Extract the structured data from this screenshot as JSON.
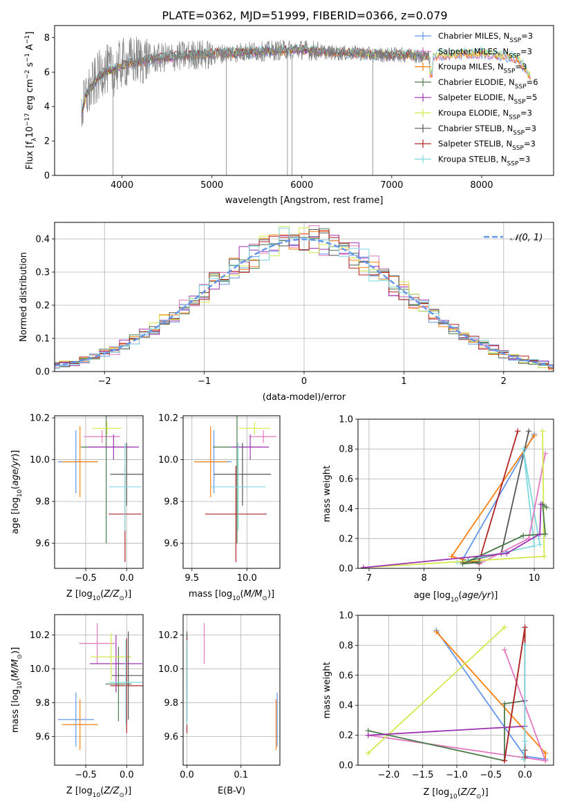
{
  "figure": {
    "title": "PLATE=0362, MJD=51999, FIBERID=0366, z=0.079"
  },
  "series": [
    {
      "key": "chab_miles",
      "name": "Chabrier MILES, N$_{SSP}$=3",
      "label_main": "Chabrier MILES, N",
      "label_sub": "SSP",
      "label_tail": "=3",
      "color": "#6495ed"
    },
    {
      "key": "salp_miles",
      "name": "Salpeter MILES, N$_{SSP}$=3",
      "label_main": "Salpeter MILES, N",
      "label_sub": "SSP",
      "label_tail": "=3",
      "color": "#e377c2"
    },
    {
      "key": "krou_miles",
      "name": "Kroupa MILES, N$_{SSP}$=3",
      "label_main": "Kroupa MILES, N",
      "label_sub": "SSP",
      "label_tail": "=3",
      "color": "#ff7f0e"
    },
    {
      "key": "chab_elodie",
      "name": "Chabrier ELODIE, N$_{SSP}$=6",
      "label_main": "Chabrier ELODIE, N",
      "label_sub": "SSP",
      "label_tail": "=6",
      "color": "#4a7a4a"
    },
    {
      "key": "salp_elodie",
      "name": "Salpeter ELODIE, N$_{SSP}$=5",
      "label_main": "Salpeter ELODIE, N",
      "label_sub": "SSP",
      "label_tail": "=5",
      "color": "#9b30b0"
    },
    {
      "key": "krou_elodie",
      "name": "Kroupa ELODIE, N$_{SSP}$=3",
      "label_main": "Kroupa ELODIE, N",
      "label_sub": "SSP",
      "label_tail": "=3",
      "color": "#d4e84a"
    },
    {
      "key": "chab_stelib",
      "name": "Chabrier STELIB, N$_{SSP}$=3",
      "label_main": "Chabrier STELIB, N",
      "label_sub": "SSP",
      "label_tail": "=3",
      "color": "#555555"
    },
    {
      "key": "salp_stelib",
      "name": "Salpeter STELIB, N$_{SSP}$=3",
      "label_main": "Salpeter STELIB, N",
      "label_sub": "SSP",
      "label_tail": "=3",
      "color": "#b22222"
    },
    {
      "key": "krou_stelib",
      "name": "Kroupa STELIB, N$_{SSP}$=3",
      "label_main": "Kroupa STELIB, N",
      "label_sub": "SSP",
      "label_tail": "=3",
      "color": "#7fd8e0"
    }
  ],
  "chart_data": [
    {
      "id": "spectrum",
      "type": "line",
      "xlabel": "wavelength [Angstrom, rest frame]",
      "ylabel": "Flux [f$_\\lambda$10$^{-17}$ erg cm$^{-2}$ s$^{-1}$ A$^{-1}$]",
      "xlim": [
        3250,
        8800
      ],
      "ylim": [
        0,
        8.7
      ],
      "xticks": [
        4000,
        5000,
        6000,
        7000,
        8000
      ],
      "yticks": [
        0,
        2,
        4,
        6,
        8
      ],
      "data_color": "#808080",
      "data_profile": {
        "wavelength": [
          3550,
          3600,
          3700,
          3800,
          3900,
          4000,
          4200,
          4400,
          4600,
          4800,
          5000,
          5200,
          5400,
          5600,
          5800,
          6000,
          6200,
          6400,
          6600,
          6800,
          7000,
          7200,
          7400
        ],
        "flux": [
          3.6,
          4.6,
          5.4,
          6.2,
          6.0,
          6.5,
          6.7,
          6.8,
          6.9,
          7.0,
          7.0,
          7.1,
          7.2,
          7.2,
          7.3,
          7.3,
          7.2,
          7.1,
          7.1,
          7.0,
          7.0,
          7.0,
          6.9
        ]
      },
      "model_profile": {
        "wavelength": [
          3550,
          3600,
          3700,
          3800,
          3900,
          4000,
          4200,
          4400,
          4600,
          4800,
          5000,
          5200,
          5400,
          5600,
          5800,
          6000,
          6200,
          6400,
          6600,
          6800,
          7000,
          7200,
          7400,
          7600,
          7800,
          8000,
          8200,
          8400,
          8550
        ],
        "flux": [
          3.6,
          4.7,
          5.4,
          6.0,
          6.1,
          6.4,
          6.6,
          6.8,
          6.9,
          7.0,
          7.05,
          7.1,
          7.15,
          7.2,
          7.25,
          7.3,
          7.2,
          7.1,
          7.1,
          7.0,
          7.0,
          7.0,
          6.95,
          7.0,
          7.1,
          7.1,
          7.0,
          6.8,
          5.7
        ]
      },
      "masked_lines": [
        3900,
        5160,
        5840,
        5890,
        6790
      ]
    },
    {
      "id": "residuals",
      "type": "histogram",
      "xlabel": "(data-model)/error",
      "ylabel": "Normed distribution",
      "xlim": [
        -2.5,
        2.5
      ],
      "ylim": [
        0,
        0.45
      ],
      "xticks": [
        -2,
        -1,
        0,
        1,
        2
      ],
      "yticks": [
        0,
        0.1,
        0.2,
        0.3,
        0.4
      ],
      "reference_label": "$\\mathcal{N}(0,1)$",
      "reference_text": "𝒩(0, 1)",
      "reference_color": "#6495ed",
      "bin_width": 0.1
    },
    {
      "id": "age_vs_Z",
      "type": "errorbar",
      "xlabel": "Z [log$_{10}$(Z/Z$_\\odot$)]",
      "ylabel": "age  [log$_{10}$(age/yr)]",
      "xlim": [
        -0.88,
        0.2
      ],
      "ylim": [
        9.48,
        10.21
      ],
      "xticks": [
        -0.5,
        0.0
      ],
      "yticks": [
        9.6,
        9.8,
        10.0,
        10.2
      ],
      "points": [
        {
          "s": "chab_miles",
          "x": -0.62,
          "xerr": 0.22,
          "y": 9.99,
          "yerr": 0.15
        },
        {
          "s": "salp_miles",
          "x": -0.3,
          "xerr": 0.22,
          "y": 10.11,
          "yerr": 0.03
        },
        {
          "s": "krou_miles",
          "x": -0.57,
          "xerr": 0.22,
          "y": 9.99,
          "yerr": 0.17
        },
        {
          "s": "chab_elodie",
          "x": -0.25,
          "xerr": 0.31,
          "y": 10.06,
          "yerr": 0.46
        },
        {
          "s": "salp_elodie",
          "x": -0.16,
          "xerr": 0.31,
          "y": 10.06,
          "yerr": 0.06
        },
        {
          "s": "krou_elodie",
          "x": -0.24,
          "xerr": 0.18,
          "y": 10.15,
          "yerr": 0.03
        },
        {
          "s": "chab_stelib",
          "x": 0.0,
          "xerr": 0.2,
          "y": 9.93,
          "yerr": 0.15
        },
        {
          "s": "salp_stelib",
          "x": -0.02,
          "xerr": 0.2,
          "y": 9.74,
          "yerr": 0.23
        },
        {
          "s": "krou_stelib",
          "x": -0.02,
          "xerr": 0.2,
          "y": 9.87,
          "yerr": 0.21
        }
      ]
    },
    {
      "id": "age_vs_mass",
      "type": "errorbar",
      "xlabel": "mass [log$_{10}$(M/M$_\\odot$)]",
      "ylabel": "",
      "xlim": [
        9.42,
        10.3
      ],
      "ylim": [
        9.48,
        10.21
      ],
      "xticks": [
        9.5,
        10.0
      ],
      "yticks": [
        9.6,
        9.8,
        10.0,
        10.2
      ],
      "points": [
        {
          "s": "chab_miles",
          "x": 9.7,
          "xerr": 0.16,
          "y": 9.99,
          "yerr": 0.15
        },
        {
          "s": "salp_miles",
          "x": 10.15,
          "xerr": 0.12,
          "y": 10.11,
          "yerr": 0.03
        },
        {
          "s": "krou_miles",
          "x": 9.67,
          "xerr": 0.15,
          "y": 9.99,
          "yerr": 0.17
        },
        {
          "s": "chab_elodie",
          "x": 9.91,
          "xerr": 0.22,
          "y": 10.06,
          "yerr": 0.46
        },
        {
          "s": "salp_elodie",
          "x": 10.03,
          "xerr": 0.17,
          "y": 10.06,
          "yerr": 0.06
        },
        {
          "s": "krou_elodie",
          "x": 10.07,
          "xerr": 0.14,
          "y": 10.15,
          "yerr": 0.03
        },
        {
          "s": "chab_stelib",
          "x": 9.96,
          "xerr": 0.26,
          "y": 9.93,
          "yerr": 0.15
        },
        {
          "s": "salp_stelib",
          "x": 9.9,
          "xerr": 0.28,
          "y": 9.74,
          "yerr": 0.23
        },
        {
          "s": "krou_stelib",
          "x": 9.92,
          "xerr": 0.25,
          "y": 9.87,
          "yerr": 0.21
        }
      ]
    },
    {
      "id": "weight_vs_age",
      "type": "line",
      "xlabel": "age  [log$_{10}$(age/yr)]",
      "ylabel": "mass weight",
      "xlim": [
        6.8,
        10.35
      ],
      "ylim": [
        0,
        1.0
      ],
      "xticks": [
        7,
        8,
        9,
        10
      ],
      "yticks": [
        0.0,
        0.2,
        0.4,
        0.6,
        0.8,
        1.0
      ],
      "lines": [
        {
          "s": "chab_miles",
          "x": [
            10.0,
            8.7,
            9.0
          ],
          "y": [
            0.9,
            0.06,
            0.04
          ]
        },
        {
          "s": "krou_miles",
          "x": [
            10.0,
            8.5,
            9.0
          ],
          "y": [
            0.89,
            0.08,
            0.03
          ]
        },
        {
          "s": "chab_stelib",
          "x": [
            9.9,
            9.4,
            8.8,
            9.0
          ],
          "y": [
            0.92,
            0.1,
            0.05,
            0.03
          ]
        },
        {
          "s": "salp_stelib",
          "x": [
            9.7,
            9.0,
            8.7
          ],
          "y": [
            0.92,
            0.05,
            0.04
          ]
        },
        {
          "s": "krou_stelib",
          "x": [
            10.1,
            9.8,
            10.0,
            8.6
          ],
          "y": [
            0.16,
            0.8,
            0.15,
            0.04
          ]
        },
        {
          "s": "salp_miles",
          "x": [
            10.2,
            9.9,
            9.0
          ],
          "y": [
            0.77,
            0.2,
            0.03
          ]
        },
        {
          "s": "krou_elodie",
          "x": [
            10.15,
            10.18,
            6.9
          ],
          "y": [
            0.92,
            0.08,
            0.005
          ]
        },
        {
          "s": "chab_elodie",
          "x": [
            10.22,
            10.15,
            10.2,
            9.8,
            8.7,
            9.0
          ],
          "y": [
            0.41,
            0.43,
            0.23,
            0.22,
            0.03,
            0.04
          ]
        },
        {
          "s": "salp_elodie",
          "x": [
            10.12,
            10.1,
            9.5,
            6.9
          ],
          "y": [
            0.43,
            0.23,
            0.1,
            0.005
          ]
        }
      ]
    },
    {
      "id": "mass_vs_Z",
      "type": "errorbar",
      "xlabel": "Z [log$_{10}$(Z/Z$_\\odot$)]",
      "ylabel": "mass [log$_{10}$(M/M$_\\odot$)]",
      "xlim": [
        -0.88,
        0.2
      ],
      "ylim": [
        9.43,
        10.32
      ],
      "xticks": [
        -0.5,
        0.0
      ],
      "yticks": [
        9.6,
        9.8,
        10.0,
        10.2
      ],
      "points": [
        {
          "s": "chab_miles",
          "x": -0.62,
          "xerr": 0.22,
          "y": 9.7,
          "yerr": 0.16
        },
        {
          "s": "salp_miles",
          "x": -0.36,
          "xerr": 0.22,
          "y": 10.15,
          "yerr": 0.12
        },
        {
          "s": "krou_miles",
          "x": -0.57,
          "xerr": 0.22,
          "y": 9.67,
          "yerr": 0.15
        },
        {
          "s": "chab_elodie",
          "x": -0.1,
          "xerr": 0.16,
          "y": 9.91,
          "yerr": 0.22
        },
        {
          "s": "salp_elodie",
          "x": -0.13,
          "xerr": 0.32,
          "y": 10.03,
          "yerr": 0.17
        },
        {
          "s": "krou_elodie",
          "x": -0.19,
          "xerr": 0.25,
          "y": 10.07,
          "yerr": 0.14
        },
        {
          "s": "chab_stelib",
          "x": 0.02,
          "xerr": 0.2,
          "y": 9.96,
          "yerr": 0.26
        },
        {
          "s": "salp_stelib",
          "x": 0.0,
          "xerr": 0.2,
          "y": 9.9,
          "yerr": 0.28
        },
        {
          "s": "krou_stelib",
          "x": -0.01,
          "xerr": 0.2,
          "y": 9.92,
          "yerr": 0.25
        }
      ]
    },
    {
      "id": "mass_vs_ebv",
      "type": "errorbar",
      "xlabel": "E(B-V)",
      "ylabel": "",
      "xlim": [
        -0.007,
        0.172
      ],
      "ylim": [
        9.43,
        10.32
      ],
      "xticks": [
        0.0,
        0.1
      ],
      "yticks": [
        9.6,
        9.8,
        10.0,
        10.2
      ],
      "points": [
        {
          "s": "chab_miles",
          "x": 0.167,
          "xerr": 0,
          "y": 9.7,
          "yerr": 0.16
        },
        {
          "s": "salp_miles",
          "x": 0.032,
          "xerr": 0,
          "y": 10.15,
          "yerr": 0.12
        },
        {
          "s": "krou_miles",
          "x": 0.165,
          "xerr": 0,
          "y": 9.67,
          "yerr": 0.15
        },
        {
          "s": "chab_elodie",
          "x": 0.0,
          "xerr": 0,
          "y": 9.91,
          "yerr": 0.22
        },
        {
          "s": "salp_elodie",
          "x": 0.0,
          "xerr": 0,
          "y": 10.03,
          "yerr": 0.17
        },
        {
          "s": "krou_elodie",
          "x": 0.0,
          "xerr": 0,
          "y": 10.07,
          "yerr": 0.14
        },
        {
          "s": "chab_stelib",
          "x": 0.0,
          "xerr": 0,
          "y": 9.96,
          "yerr": 0.26
        },
        {
          "s": "salp_stelib",
          "x": 0.0,
          "xerr": 0,
          "y": 9.9,
          "yerr": 0.28
        },
        {
          "s": "krou_stelib",
          "x": 0.0,
          "xerr": 0,
          "y": 9.92,
          "yerr": 0.25
        }
      ]
    },
    {
      "id": "weight_vs_Z",
      "type": "line",
      "xlabel": "Z [log$_{10}$(Z/Z$_\\odot$)]",
      "ylabel": "mass weight",
      "xlim": [
        -2.45,
        0.42
      ],
      "ylim": [
        0,
        1.0
      ],
      "xticks": [
        -2.0,
        -1.5,
        -1.0,
        -0.5,
        0.0
      ],
      "yticks": [
        0.0,
        0.2,
        0.4,
        0.6,
        0.8,
        1.0
      ],
      "lines": [
        {
          "s": "chab_miles",
          "x": [
            -1.3,
            0.0,
            0.3
          ],
          "y": [
            0.9,
            0.06,
            0.04
          ]
        },
        {
          "s": "krou_miles",
          "x": [
            -1.3,
            0.3,
            0.3
          ],
          "y": [
            0.89,
            0.08,
            0.03
          ]
        },
        {
          "s": "salp_miles",
          "x": [
            -0.3,
            0.3,
            -2.3
          ],
          "y": [
            0.77,
            0.03,
            0.2
          ]
        },
        {
          "s": "krou_elodie",
          "x": [
            -0.3,
            -2.3
          ],
          "y": [
            0.92,
            0.08
          ]
        },
        {
          "s": "chab_elodie",
          "x": [
            -2.3,
            -0.3,
            -0.3,
            0.0
          ],
          "y": [
            0.23,
            0.03,
            0.41,
            0.43
          ]
        },
        {
          "s": "salp_elodie",
          "x": [
            -2.3,
            0.0,
            0.0
          ],
          "y": [
            0.2,
            0.26,
            0.43
          ]
        },
        {
          "s": "chab_stelib",
          "x": [
            -0.3,
            0.0,
            0.0
          ],
          "y": [
            0.03,
            0.92,
            0.1
          ]
        },
        {
          "s": "salp_stelib",
          "x": [
            -0.3,
            0.0,
            0.0
          ],
          "y": [
            0.03,
            0.92,
            0.05
          ]
        },
        {
          "s": "krou_stelib",
          "x": [
            0.0,
            0.0,
            -0.02
          ],
          "y": [
            0.8,
            0.16,
            0.04
          ]
        }
      ]
    }
  ]
}
